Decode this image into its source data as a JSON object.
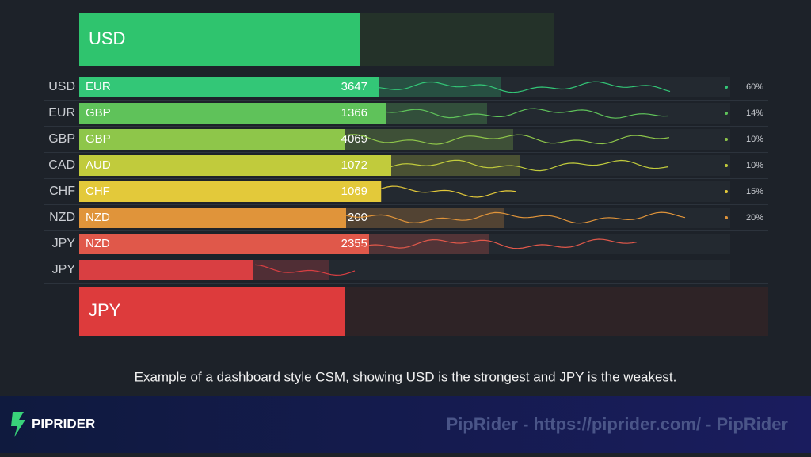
{
  "top_bar": {
    "label": "USD"
  },
  "rows": [
    {
      "currency": "USD",
      "pair": "EUR",
      "value": 3647,
      "percent": "60%"
    },
    {
      "currency": "EUR",
      "pair": "GBP",
      "value": 1366,
      "percent": "14%"
    },
    {
      "currency": "GBP",
      "pair": "GBP",
      "value": 4069,
      "percent": "10%"
    },
    {
      "currency": "CAD",
      "pair": "AUD",
      "value": 1072,
      "percent": "10%"
    },
    {
      "currency": "CHF",
      "pair": "CHF",
      "value": 1069,
      "percent": "15%"
    },
    {
      "currency": "NZD",
      "pair": "NZD",
      "value": 200,
      "percent": "20%"
    },
    {
      "currency": "JPY",
      "pair": "NZD",
      "value": 2355
    },
    {
      "currency": "JPY"
    }
  ],
  "bottom_bar": {
    "label": "JPY"
  },
  "caption": "Example of a dashboard style CSM, showing USD is the strongest and JPY is the weakest.",
  "footer": {
    "brand": "PIPRIDER",
    "watermark": "PipRider - https://piprider.com/ - PipRider"
  }
}
